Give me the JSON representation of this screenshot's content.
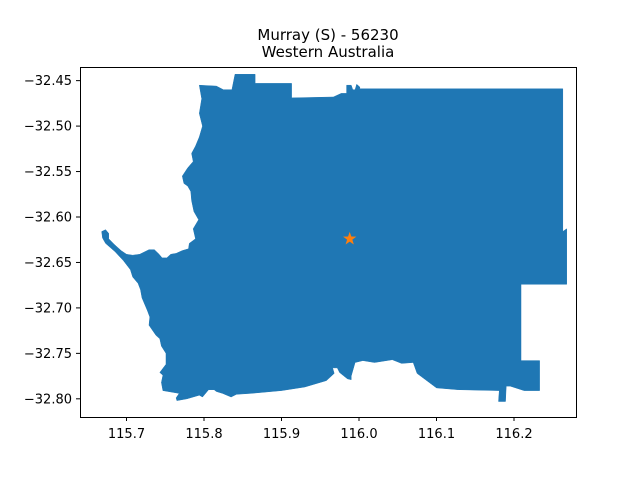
{
  "title": {
    "line1": "Murray (S) - 56230",
    "line2": "Western Australia"
  },
  "chart_data": {
    "type": "map",
    "x_ticks": [
      "115.7",
      "115.8",
      "115.9",
      "116.0",
      "116.1",
      "116.2"
    ],
    "y_ticks": [
      "−32.45",
      "−32.50",
      "−32.55",
      "−32.60",
      "−32.65",
      "−32.70",
      "−32.75",
      "−32.80"
    ],
    "xlim": [
      115.64,
      116.28
    ],
    "ylim": [
      -32.82,
      -32.435
    ],
    "region_color": "#1f77b4",
    "marker": {
      "lon": 115.988,
      "lat": -32.624,
      "color": "#ff7f0e",
      "shape": "star"
    },
    "region_polygon_lonlat": [
      [
        115.84,
        -32.443
      ],
      [
        115.866,
        -32.443
      ],
      [
        115.866,
        -32.453
      ],
      [
        115.913,
        -32.453
      ],
      [
        115.913,
        -32.469
      ],
      [
        115.967,
        -32.468
      ],
      [
        115.977,
        -32.464
      ],
      [
        115.984,
        -32.464
      ],
      [
        115.984,
        -32.455
      ],
      [
        115.99,
        -32.455
      ],
      [
        115.992,
        -32.46
      ],
      [
        115.995,
        -32.46
      ],
      [
        115.997,
        -32.454
      ],
      [
        116.001,
        -32.457
      ],
      [
        116.001,
        -32.459
      ],
      [
        116.263,
        -32.459
      ],
      [
        116.263,
        -32.616
      ],
      [
        116.268,
        -32.613
      ],
      [
        116.268,
        -32.674
      ],
      [
        116.209,
        -32.674
      ],
      [
        116.209,
        -32.758
      ],
      [
        116.233,
        -32.758
      ],
      [
        116.233,
        -32.791
      ],
      [
        116.213,
        -32.791
      ],
      [
        116.195,
        -32.786
      ],
      [
        116.19,
        -32.786
      ],
      [
        116.189,
        -32.803
      ],
      [
        116.18,
        -32.803
      ],
      [
        116.181,
        -32.791
      ],
      [
        116.128,
        -32.79
      ],
      [
        116.1,
        -32.788
      ],
      [
        116.075,
        -32.772
      ],
      [
        116.07,
        -32.76
      ],
      [
        116.055,
        -32.761
      ],
      [
        116.043,
        -32.757
      ],
      [
        116.02,
        -32.76
      ],
      [
        116.005,
        -32.758
      ],
      [
        115.995,
        -32.76
      ],
      [
        115.99,
        -32.775
      ],
      [
        115.99,
        -32.779
      ],
      [
        115.985,
        -32.778
      ],
      [
        115.975,
        -32.771
      ],
      [
        115.972,
        -32.766
      ],
      [
        115.966,
        -32.766
      ],
      [
        115.968,
        -32.772
      ],
      [
        115.958,
        -32.78
      ],
      [
        115.93,
        -32.787
      ],
      [
        115.9,
        -32.791
      ],
      [
        115.86,
        -32.794
      ],
      [
        115.842,
        -32.795
      ],
      [
        115.835,
        -32.798
      ],
      [
        115.824,
        -32.794
      ],
      [
        115.816,
        -32.792
      ],
      [
        115.813,
        -32.79
      ],
      [
        115.806,
        -32.79
      ],
      [
        115.798,
        -32.798
      ],
      [
        115.794,
        -32.796
      ],
      [
        115.778,
        -32.8
      ],
      [
        115.765,
        -32.802
      ],
      [
        115.764,
        -32.799
      ],
      [
        115.768,
        -32.794
      ],
      [
        115.747,
        -32.791
      ],
      [
        115.745,
        -32.782
      ],
      [
        115.747,
        -32.774
      ],
      [
        115.743,
        -32.771
      ],
      [
        115.751,
        -32.762
      ],
      [
        115.751,
        -32.75
      ],
      [
        115.745,
        -32.742
      ],
      [
        115.743,
        -32.734
      ],
      [
        115.738,
        -32.73
      ],
      [
        115.729,
        -32.719
      ],
      [
        115.73,
        -32.71
      ],
      [
        115.727,
        -32.703
      ],
      [
        115.72,
        -32.689
      ],
      [
        115.718,
        -32.68
      ],
      [
        115.715,
        -32.673
      ],
      [
        115.708,
        -32.666
      ],
      [
        115.705,
        -32.658
      ],
      [
        115.696,
        -32.648
      ],
      [
        115.685,
        -32.638
      ],
      [
        115.673,
        -32.629
      ],
      [
        115.669,
        -32.623
      ],
      [
        115.668,
        -32.616
      ],
      [
        115.673,
        -32.614
      ],
      [
        115.677,
        -32.618
      ],
      [
        115.677,
        -32.624
      ],
      [
        115.684,
        -32.63
      ],
      [
        115.693,
        -32.637
      ],
      [
        115.7,
        -32.641
      ],
      [
        115.708,
        -32.642
      ],
      [
        115.717,
        -32.641
      ],
      [
        115.729,
        -32.636
      ],
      [
        115.736,
        -32.636
      ],
      [
        115.742,
        -32.641
      ],
      [
        115.746,
        -32.645
      ],
      [
        115.752,
        -32.645
      ],
      [
        115.757,
        -32.641
      ],
      [
        115.764,
        -32.64
      ],
      [
        115.772,
        -32.637
      ],
      [
        115.78,
        -32.635
      ],
      [
        115.781,
        -32.629
      ],
      [
        115.789,
        -32.624
      ],
      [
        115.786,
        -32.613
      ],
      [
        115.793,
        -32.603
      ],
      [
        115.787,
        -32.594
      ],
      [
        115.784,
        -32.582
      ],
      [
        115.783,
        -32.572
      ],
      [
        115.779,
        -32.566
      ],
      [
        115.774,
        -32.563
      ],
      [
        115.772,
        -32.555
      ],
      [
        115.779,
        -32.546
      ],
      [
        115.786,
        -32.539
      ],
      [
        115.784,
        -32.53
      ],
      [
        115.789,
        -32.522
      ],
      [
        115.794,
        -32.512
      ],
      [
        115.798,
        -32.5
      ],
      [
        115.794,
        -32.486
      ],
      [
        115.797,
        -32.47
      ],
      [
        115.794,
        -32.455
      ],
      [
        115.816,
        -32.456
      ],
      [
        115.825,
        -32.46
      ],
      [
        115.836,
        -32.46
      ]
    ]
  }
}
